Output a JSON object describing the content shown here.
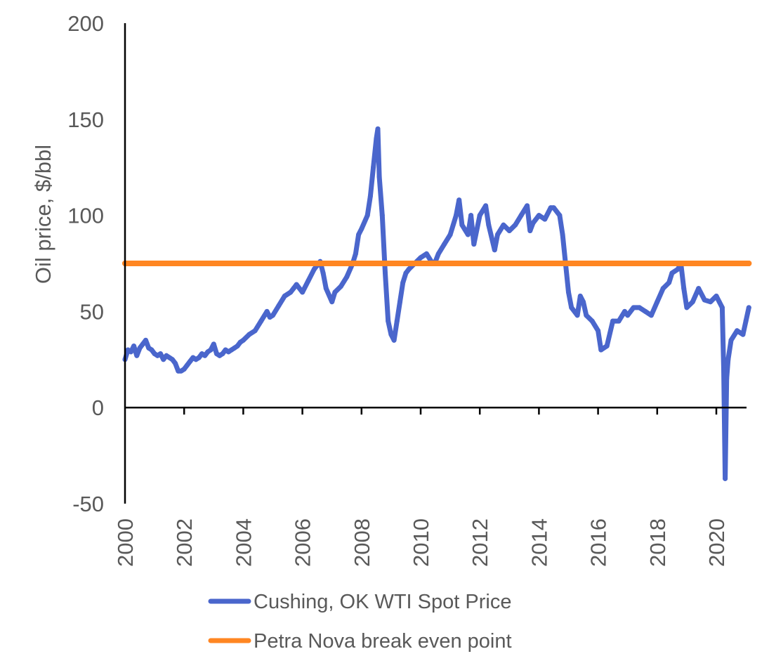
{
  "chart_data": {
    "type": "line",
    "title": "",
    "xlabel": "",
    "ylabel": "Oil price, $/bbl",
    "xlim": [
      2000,
      2021.1
    ],
    "ylim": [
      -50,
      200
    ],
    "grid": false,
    "x_ticks": [
      "2000",
      "2002",
      "2004",
      "2006",
      "2008",
      "2010",
      "2012",
      "2014",
      "2016",
      "2018",
      "2020"
    ],
    "y_ticks": [
      "200",
      "150",
      "100",
      "50",
      "0",
      "-50"
    ],
    "legend_position": "bottom",
    "series": [
      {
        "name": "Cushing, OK WTI Spot Price",
        "color": "#4A66CC",
        "x": [
          2000.0,
          2000.1,
          2000.2,
          2000.3,
          2000.4,
          2000.5,
          2000.6,
          2000.7,
          2000.8,
          2000.9,
          2001.0,
          2001.1,
          2001.2,
          2001.3,
          2001.4,
          2001.5,
          2001.6,
          2001.7,
          2001.8,
          2001.9,
          2002.0,
          2002.1,
          2002.2,
          2002.3,
          2002.4,
          2002.5,
          2002.6,
          2002.7,
          2002.8,
          2002.9,
          2003.0,
          2003.1,
          2003.2,
          2003.3,
          2003.4,
          2003.5,
          2003.6,
          2003.7,
          2003.8,
          2003.9,
          2004.0,
          2004.2,
          2004.4,
          2004.6,
          2004.8,
          2004.9,
          2005.0,
          2005.2,
          2005.4,
          2005.6,
          2005.7,
          2005.8,
          2006.0,
          2006.2,
          2006.4,
          2006.6,
          2006.7,
          2006.8,
          2007.0,
          2007.1,
          2007.3,
          2007.5,
          2007.7,
          2007.8,
          2007.9,
          2008.0,
          2008.2,
          2008.3,
          2008.4,
          2008.5,
          2008.55,
          2008.6,
          2008.7,
          2008.8,
          2008.9,
          2009.0,
          2009.1,
          2009.2,
          2009.3,
          2009.4,
          2009.5,
          2009.6,
          2009.8,
          2010.0,
          2010.2,
          2010.4,
          2010.5,
          2010.6,
          2010.8,
          2011.0,
          2011.2,
          2011.3,
          2011.4,
          2011.6,
          2011.7,
          2011.8,
          2012.0,
          2012.2,
          2012.3,
          2012.5,
          2012.6,
          2012.8,
          2013.0,
          2013.2,
          2013.4,
          2013.6,
          2013.7,
          2013.8,
          2014.0,
          2014.2,
          2014.4,
          2014.5,
          2014.7,
          2014.8,
          2014.9,
          2015.0,
          2015.1,
          2015.3,
          2015.4,
          2015.5,
          2015.6,
          2015.8,
          2016.0,
          2016.1,
          2016.3,
          2016.5,
          2016.7,
          2016.9,
          2017.0,
          2017.2,
          2017.4,
          2017.6,
          2017.8,
          2018.0,
          2018.2,
          2018.4,
          2018.5,
          2018.7,
          2018.8,
          2018.9,
          2019.0,
          2019.2,
          2019.4,
          2019.6,
          2019.8,
          2020.0,
          2020.1,
          2020.2,
          2020.25,
          2020.3,
          2020.35,
          2020.4,
          2020.5,
          2020.7,
          2020.9,
          2021.0,
          2021.1
        ],
        "values": [
          25,
          30,
          29,
          32,
          27,
          31,
          33,
          35,
          31,
          30,
          28,
          27,
          28,
          25,
          27,
          26,
          25,
          23,
          19,
          19,
          20,
          22,
          24,
          26,
          25,
          26,
          28,
          27,
          29,
          30,
          33,
          28,
          27,
          28,
          30,
          29,
          30,
          31,
          32,
          34,
          35,
          38,
          40,
          45,
          50,
          47,
          48,
          53,
          58,
          60,
          62,
          64,
          60,
          66,
          72,
          76,
          70,
          62,
          55,
          60,
          63,
          68,
          75,
          80,
          90,
          93,
          100,
          110,
          125,
          140,
          145,
          120,
          100,
          70,
          45,
          38,
          35,
          45,
          55,
          65,
          70,
          72,
          75,
          78,
          80,
          75,
          76,
          80,
          85,
          90,
          100,
          108,
          95,
          90,
          100,
          85,
          100,
          105,
          95,
          82,
          90,
          95,
          92,
          95,
          100,
          105,
          92,
          96,
          100,
          98,
          104,
          104,
          100,
          90,
          75,
          60,
          52,
          48,
          58,
          55,
          48,
          45,
          40,
          30,
          32,
          45,
          45,
          50,
          48,
          52,
          52,
          50,
          48,
          55,
          62,
          65,
          70,
          72,
          75,
          62,
          52,
          55,
          62,
          56,
          55,
          58,
          55,
          52,
          20,
          -37,
          15,
          25,
          35,
          40,
          38,
          45,
          52
        ]
      },
      {
        "name": "Petra Nova break even point",
        "color": "#FF8622",
        "x": [
          2000,
          2021.1
        ],
        "values": [
          75,
          75
        ]
      }
    ]
  }
}
